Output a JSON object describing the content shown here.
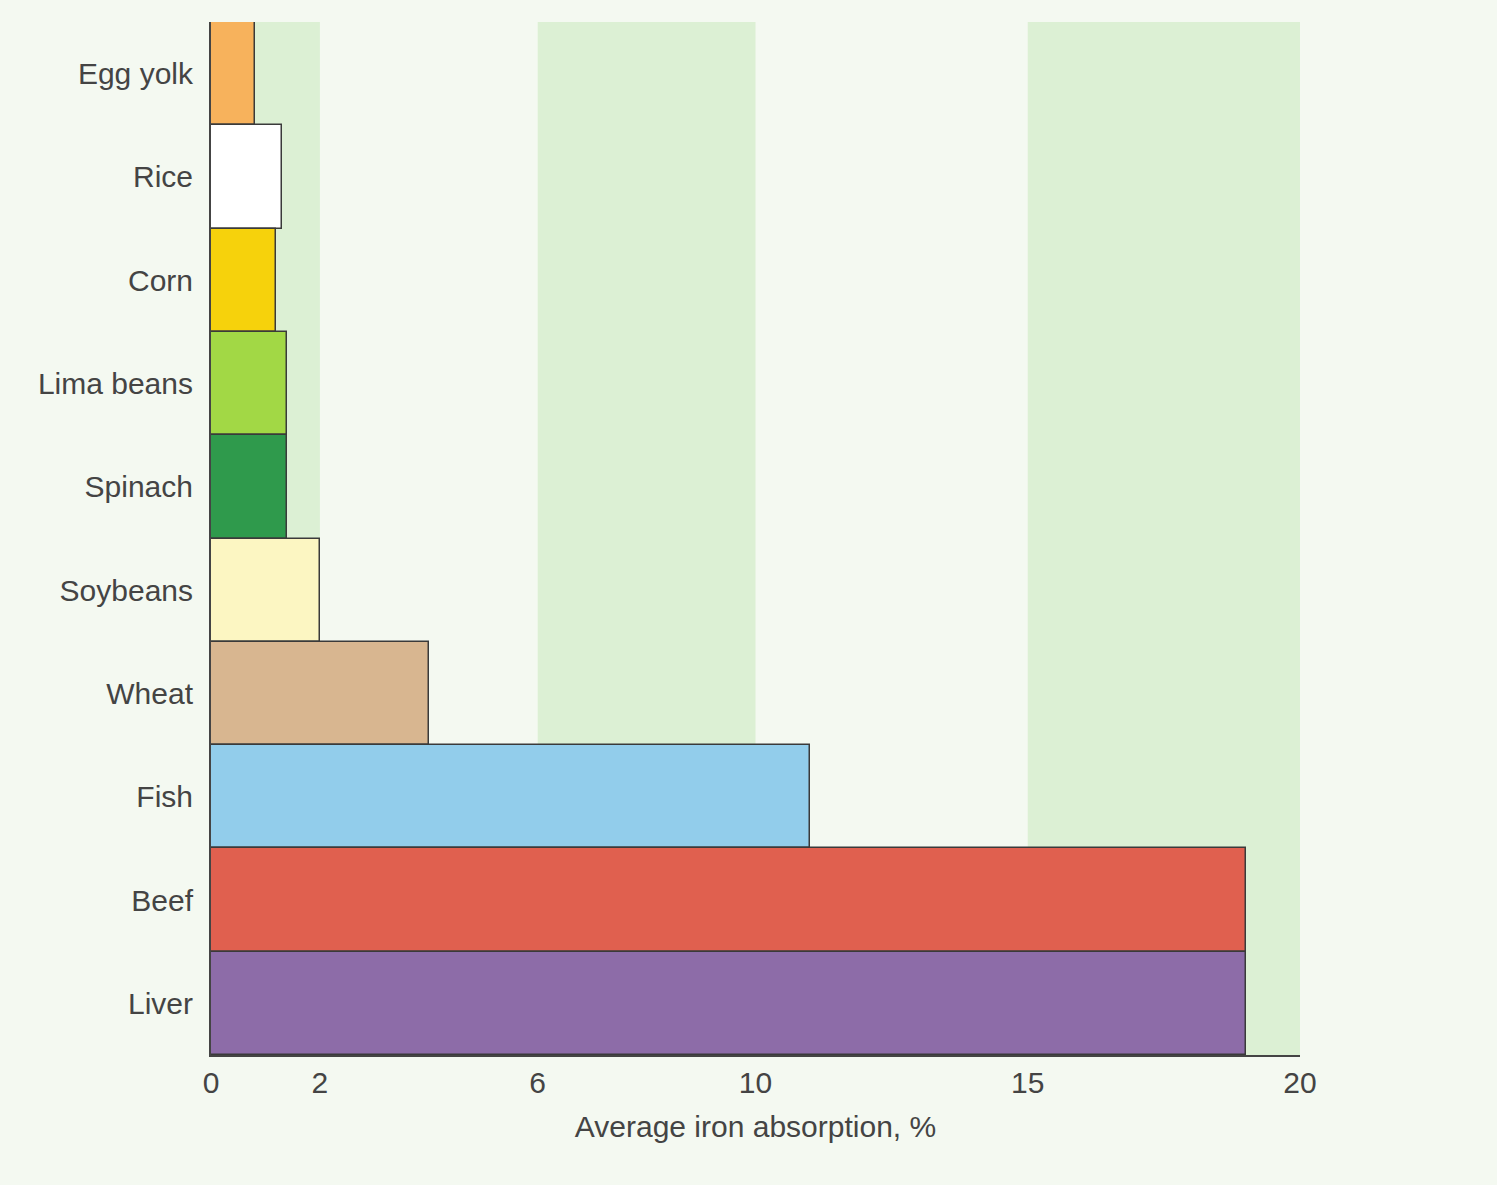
{
  "chart_data": {
    "type": "bar",
    "orientation": "horizontal",
    "categories": [
      "Egg yolk",
      "Rice",
      "Corn",
      "Lima beans",
      "Spinach",
      "Soybeans",
      "Wheat",
      "Fish",
      "Beef",
      "Liver"
    ],
    "values": [
      0.8,
      1.3,
      1.2,
      1.4,
      1.4,
      2.0,
      4.0,
      11,
      19,
      19
    ],
    "colors": [
      "#f7b25c",
      "#ffffff",
      "#f6d20c",
      "#a2d845",
      "#2f9a4c",
      "#fcf6c2",
      "#d8b690",
      "#92cdeb",
      "#e0604f",
      "#8d6ca8"
    ],
    "x_label": "Average iron absorption, %",
    "xlim": [
      0,
      20
    ],
    "xticks": [
      0,
      2,
      6,
      10,
      15,
      20
    ],
    "grid": true
  }
}
